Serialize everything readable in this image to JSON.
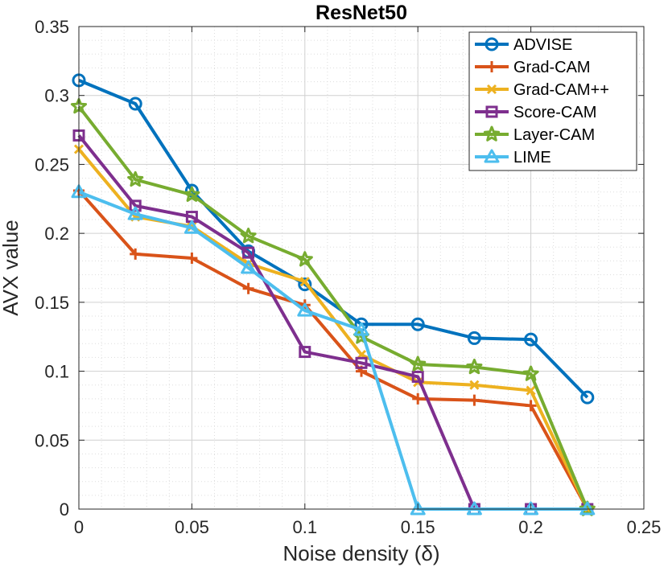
{
  "chart_data": {
    "type": "line",
    "title": "ResNet50",
    "xlabel": "Noise density (δ)",
    "ylabel": "AVX value",
    "xlim": [
      0,
      0.25
    ],
    "ylim": [
      0,
      0.35
    ],
    "x_ticks": [
      "0",
      "0.05",
      "0.1",
      "0.15",
      "0.2",
      "0.25"
    ],
    "y_ticks": [
      "0",
      "0.05",
      "0.1",
      "0.15",
      "0.2",
      "0.25",
      "0.3",
      "0.35"
    ],
    "grid": true,
    "minor_grid": true,
    "legend_position": "top-right",
    "x": [
      0,
      0.025,
      0.05,
      0.075,
      0.1,
      0.125,
      0.15,
      0.175,
      0.2,
      0.225
    ],
    "series": [
      {
        "name": "ADVISE",
        "color": "#0072BD",
        "marker": "circle",
        "values": [
          0.311,
          0.294,
          0.231,
          0.187,
          0.163,
          0.134,
          0.134,
          0.124,
          0.123,
          0.081
        ]
      },
      {
        "name": "Grad-CAM",
        "color": "#D95319",
        "marker": "plus",
        "values": [
          0.231,
          0.185,
          0.182,
          0.16,
          0.148,
          0.1,
          0.08,
          0.079,
          0.075,
          0.0
        ]
      },
      {
        "name": "Grad-CAM++",
        "color": "#EDB120",
        "marker": "x",
        "values": [
          0.261,
          0.212,
          0.205,
          0.178,
          0.165,
          0.112,
          0.092,
          0.09,
          0.086,
          0.0
        ]
      },
      {
        "name": "Score-CAM",
        "color": "#7E2F8E",
        "marker": "square",
        "values": [
          0.271,
          0.22,
          0.212,
          0.186,
          0.114,
          0.106,
          0.096,
          0.0,
          0.0,
          0.0
        ]
      },
      {
        "name": "Layer-CAM",
        "color": "#77AC30",
        "marker": "star",
        "values": [
          0.292,
          0.239,
          0.228,
          0.198,
          0.181,
          0.125,
          0.105,
          0.103,
          0.098,
          0.0
        ]
      },
      {
        "name": "LIME",
        "color": "#4DBEEE",
        "marker": "triangle",
        "values": [
          0.23,
          0.214,
          0.204,
          0.175,
          0.144,
          0.13,
          0.0,
          0.0,
          0.0,
          0.0
        ]
      }
    ]
  }
}
